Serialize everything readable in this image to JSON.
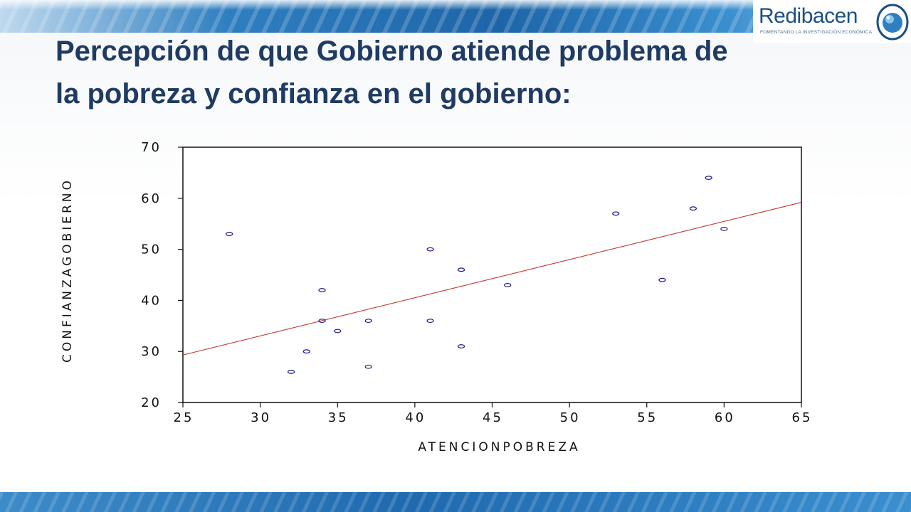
{
  "header": {
    "logo_name": "Redibacen",
    "logo_tagline": "FOMENTANDO LA INVESTIGACIÓN ECONÓMICA",
    "logo_icon": "globe-ring-icon"
  },
  "title": {
    "line1": "Percepción de que Gobierno atiende problema de",
    "line2": "la pobreza y confianza en el gobierno:"
  },
  "colors": {
    "title": "#1f3b63",
    "banner": "#1d65a8",
    "points": "#1a1a8c",
    "fit_line": "#c0392b"
  },
  "chart_data": {
    "type": "scatter",
    "xlabel": "ATENCIONPOBREZA",
    "ylabel": "CONFIANZAGOBIERNO",
    "xlim": [
      25,
      65
    ],
    "ylim": [
      20,
      70
    ],
    "xticks": [
      25,
      30,
      35,
      40,
      45,
      50,
      55,
      60,
      65
    ],
    "yticks": [
      20,
      30,
      40,
      50,
      60,
      70
    ],
    "grid": false,
    "points": [
      {
        "x": 28,
        "y": 53
      },
      {
        "x": 32,
        "y": 26
      },
      {
        "x": 33,
        "y": 30
      },
      {
        "x": 34,
        "y": 42
      },
      {
        "x": 34,
        "y": 36
      },
      {
        "x": 35,
        "y": 34
      },
      {
        "x": 37,
        "y": 36
      },
      {
        "x": 37,
        "y": 27
      },
      {
        "x": 41,
        "y": 50
      },
      {
        "x": 41,
        "y": 36
      },
      {
        "x": 43,
        "y": 46
      },
      {
        "x": 43,
        "y": 31
      },
      {
        "x": 46,
        "y": 43
      },
      {
        "x": 53,
        "y": 57
      },
      {
        "x": 56,
        "y": 44
      },
      {
        "x": 58,
        "y": 58
      },
      {
        "x": 59,
        "y": 64
      },
      {
        "x": 60,
        "y": 54
      }
    ],
    "fit_line": {
      "x": [
        25,
        65
      ],
      "y": [
        29.3,
        59.2
      ]
    }
  }
}
